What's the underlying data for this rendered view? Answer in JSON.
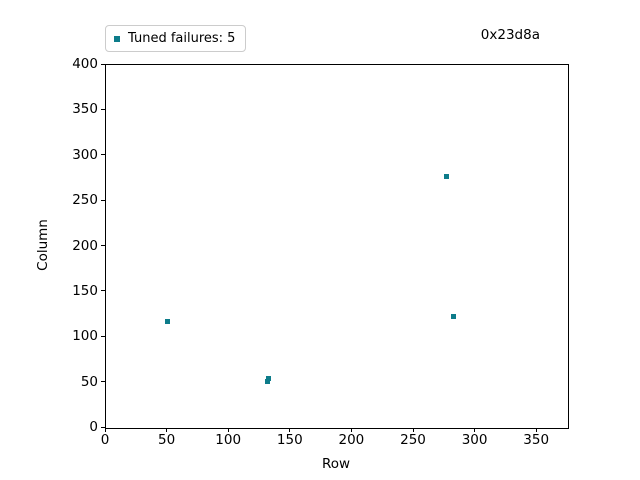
{
  "figure": {
    "background": "#ffffff"
  },
  "chart_data": {
    "type": "scatter",
    "title": "0x23d8a",
    "xlabel": "Row",
    "ylabel": "Column",
    "xlim": [
      0,
      375
    ],
    "ylim": [
      0,
      400
    ],
    "x_ticks": [
      0,
      50,
      100,
      150,
      200,
      250,
      300,
      350
    ],
    "y_ticks": [
      0,
      50,
      100,
      150,
      200,
      250,
      300,
      350,
      400
    ],
    "grid": false,
    "legend": {
      "position": "upper-left",
      "frame_border_color": "#cccccc",
      "entries": [
        {
          "label": "Tuned failures: 5",
          "marker": "square",
          "color": "#0d7c8a"
        }
      ]
    },
    "series": [
      {
        "name": "Tuned failures",
        "marker": "square",
        "color": "#0d7c8a",
        "points": [
          {
            "x": 51,
            "y": 116
          },
          {
            "x": 132,
            "y": 50
          },
          {
            "x": 133,
            "y": 53
          },
          {
            "x": 277,
            "y": 276
          },
          {
            "x": 283,
            "y": 122
          }
        ]
      }
    ]
  }
}
